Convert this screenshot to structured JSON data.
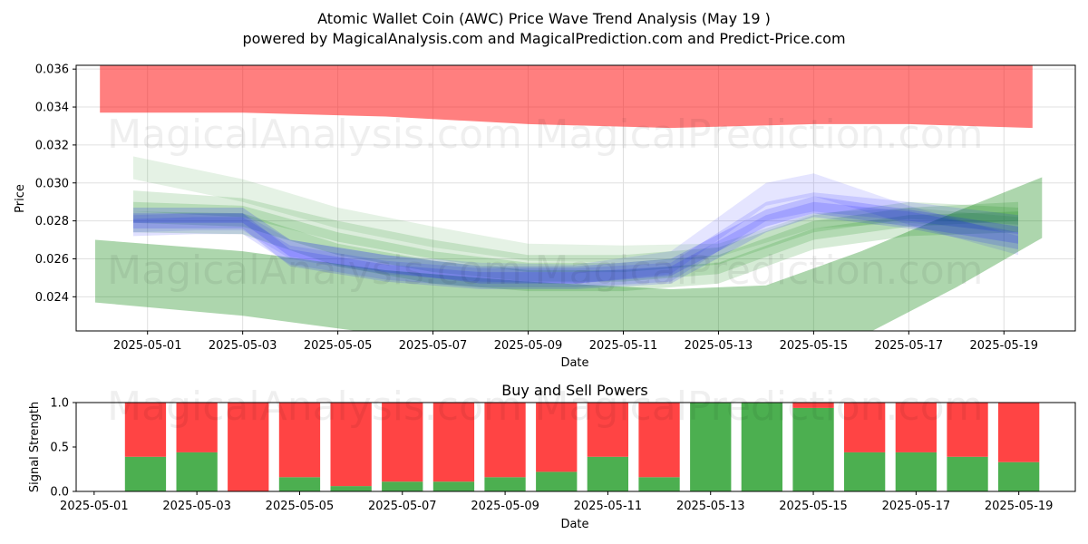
{
  "title": "Atomic Wallet Coin (AWC) Price Wave Trend Analysis (May 19 )",
  "subtitle": "powered by MagicalAnalysis.com and MagicalPrediction.com and Predict-Price.com",
  "watermarks": [
    "MagicalAnalysis.com",
    "MagicalPrediction.com"
  ],
  "colors": {
    "red_band": "#ff0000",
    "green_band": "#008000",
    "blue_band": "#0000ff",
    "buy": "#4caf50",
    "sell": "#ff4444",
    "grid": "#e0e0e0"
  },
  "chart_data": [
    {
      "type": "area",
      "title": "",
      "xlabel": "Date",
      "ylabel": "Price",
      "ylim": [
        0.0222,
        0.0362
      ],
      "xlim": [
        "2025-04-29T12:00",
        "2025-05-20T12:00"
      ],
      "grid": true,
      "x_ticks": [
        "2025-05-01",
        "2025-05-03",
        "2025-05-05",
        "2025-05-07",
        "2025-05-09",
        "2025-05-11",
        "2025-05-13",
        "2025-05-15",
        "2025-05-17",
        "2025-05-19"
      ],
      "y_ticks": [
        0.024,
        0.026,
        0.028,
        0.03,
        0.032,
        0.034,
        0.036
      ],
      "y_tick_labels": [
        "0.024",
        "0.026",
        "0.028",
        "0.030",
        "0.032",
        "0.034",
        "0.036"
      ],
      "series": [
        {
          "kind": "band",
          "color": "red",
          "opacity": 0.5,
          "x": [
            "2025-04-30",
            "2025-05-03",
            "2025-05-06",
            "2025-05-09",
            "2025-05-12",
            "2025-05-15",
            "2025-05-17",
            "2025-05-19.6"
          ],
          "upper": [
            0.0362,
            0.0362,
            0.0362,
            0.0362,
            0.0362,
            0.0362,
            0.0362,
            0.0362
          ],
          "lower": [
            0.0337,
            0.0337,
            0.0335,
            0.0331,
            0.0329,
            0.0331,
            0.0331,
            0.0329
          ]
        },
        {
          "kind": "band",
          "color": "green",
          "opacity": 0.32,
          "x": [
            "2025-04-29.9",
            "2025-05-03",
            "2025-05-06",
            "2025-05-09",
            "2025-05-12",
            "2025-05-14",
            "2025-05-16",
            "2025-05-18",
            "2025-05-19.8"
          ],
          "upper": [
            0.027,
            0.0264,
            0.0254,
            0.0248,
            0.0244,
            0.0246,
            0.0264,
            0.0285,
            0.0303
          ],
          "lower": [
            0.0237,
            0.023,
            0.022,
            0.0215,
            0.0213,
            0.0212,
            0.0219,
            0.0245,
            0.0271
          ]
        },
        {
          "kind": "band",
          "color": "green",
          "opacity": 0.1,
          "x": [
            "2025-04-30.7",
            "2025-05-03",
            "2025-05-05",
            "2025-05-07",
            "2025-05-09",
            "2025-05-11",
            "2025-05-13",
            "2025-05-15",
            "2025-05-17",
            "2025-05-19.3"
          ],
          "upper": [
            0.0314,
            0.0302,
            0.0287,
            0.0277,
            0.0268,
            0.0267,
            0.0268,
            0.0284,
            0.0287,
            0.0282
          ],
          "lower": [
            0.0302,
            0.029,
            0.0276,
            0.0266,
            0.0259,
            0.0258,
            0.0261,
            0.0276,
            0.0279,
            0.0274
          ]
        },
        {
          "kind": "band",
          "color": "green",
          "opacity": 0.14,
          "x": [
            "2025-04-30.7",
            "2025-05-03",
            "2025-05-05",
            "2025-05-07",
            "2025-05-09",
            "2025-05-11",
            "2025-05-13",
            "2025-05-15",
            "2025-05-17",
            "2025-05-19.3"
          ],
          "upper": [
            0.0296,
            0.0292,
            0.028,
            0.027,
            0.0262,
            0.0262,
            0.0266,
            0.0283,
            0.029,
            0.0287
          ],
          "lower": [
            0.0285,
            0.0282,
            0.0269,
            0.026,
            0.0253,
            0.0253,
            0.0257,
            0.0274,
            0.0281,
            0.0278
          ]
        },
        {
          "kind": "band",
          "color": "green",
          "opacity": 0.16,
          "x": [
            "2025-04-30.7",
            "2025-05-03",
            "2025-05-05",
            "2025-05-07",
            "2025-05-09",
            "2025-05-11",
            "2025-05-13",
            "2025-05-15",
            "2025-05-17",
            "2025-05-19.3"
          ],
          "upper": [
            0.029,
            0.0288,
            0.0274,
            0.0264,
            0.0258,
            0.0258,
            0.0262,
            0.028,
            0.0287,
            0.029
          ],
          "lower": [
            0.0279,
            0.0277,
            0.0262,
            0.0253,
            0.0248,
            0.0248,
            0.0252,
            0.027,
            0.0277,
            0.028
          ]
        },
        {
          "kind": "band",
          "color": "green",
          "opacity": 0.16,
          "x": [
            "2025-04-30.7",
            "2025-05-03",
            "2025-05-05",
            "2025-05-07",
            "2025-05-09",
            "2025-05-11",
            "2025-05-13",
            "2025-05-15",
            "2025-05-17",
            "2025-05-19.3"
          ],
          "upper": [
            0.0285,
            0.0284,
            0.0268,
            0.0259,
            0.0254,
            0.0254,
            0.0258,
            0.0276,
            0.0283,
            0.0285
          ],
          "lower": [
            0.0274,
            0.0273,
            0.0256,
            0.0247,
            0.0243,
            0.0243,
            0.0247,
            0.0265,
            0.0272,
            0.0274
          ]
        },
        {
          "kind": "band",
          "color": "blue",
          "opacity": 0.1,
          "x": [
            "2025-04-30.7",
            "2025-05-02",
            "2025-05-03",
            "2025-05-04",
            "2025-05-06",
            "2025-05-08",
            "2025-05-10",
            "2025-05-12",
            "2025-05-14",
            "2025-05-15",
            "2025-05-17",
            "2025-05-19.3"
          ],
          "upper": [
            0.0283,
            0.0284,
            0.0284,
            0.027,
            0.0262,
            0.0258,
            0.0257,
            0.0264,
            0.03,
            0.0305,
            0.0288,
            0.0272
          ],
          "lower": [
            0.0274,
            0.0275,
            0.0275,
            0.026,
            0.0252,
            0.0248,
            0.0247,
            0.0252,
            0.0288,
            0.0293,
            0.0278,
            0.0262
          ]
        },
        {
          "kind": "band",
          "color": "blue",
          "opacity": 0.12,
          "x": [
            "2025-04-30.7",
            "2025-05-02",
            "2025-05-03",
            "2025-05-04",
            "2025-05-06",
            "2025-05-08",
            "2025-05-10",
            "2025-05-12",
            "2025-05-14",
            "2025-05-15",
            "2025-05-17",
            "2025-05-19.3"
          ],
          "upper": [
            0.0281,
            0.0282,
            0.0282,
            0.0267,
            0.0259,
            0.0255,
            0.0255,
            0.0258,
            0.029,
            0.0295,
            0.029,
            0.0283
          ],
          "lower": [
            0.0272,
            0.0273,
            0.0273,
            0.0257,
            0.0249,
            0.0245,
            0.0245,
            0.0248,
            0.028,
            0.0285,
            0.028,
            0.0273
          ]
        },
        {
          "kind": "band",
          "color": "blue",
          "opacity": 0.14,
          "x": [
            "2025-04-30.7",
            "2025-05-02",
            "2025-05-03",
            "2025-05-04",
            "2025-05-06",
            "2025-05-08",
            "2025-05-10",
            "2025-05-12",
            "2025-05-14",
            "2025-05-15",
            "2025-05-17",
            "2025-05-19.3"
          ],
          "upper": [
            0.0284,
            0.0284,
            0.0284,
            0.0265,
            0.0257,
            0.0253,
            0.0253,
            0.0256,
            0.0283,
            0.029,
            0.0285,
            0.0274
          ],
          "lower": [
            0.0276,
            0.0276,
            0.0276,
            0.0256,
            0.0248,
            0.0244,
            0.0244,
            0.0247,
            0.0274,
            0.0282,
            0.0276,
            0.0265
          ]
        },
        {
          "kind": "band",
          "color": "blue",
          "opacity": 0.16,
          "x": [
            "2025-04-30.7",
            "2025-05-02",
            "2025-05-03",
            "2025-05-04",
            "2025-05-06",
            "2025-05-08",
            "2025-05-10",
            "2025-05-12",
            "2025-05-14",
            "2025-05-15",
            "2025-05-17",
            "2025-05-19.3"
          ],
          "upper": [
            0.0287,
            0.0287,
            0.0287,
            0.027,
            0.0262,
            0.0256,
            0.0256,
            0.026,
            0.0286,
            0.0293,
            0.0286,
            0.0277
          ],
          "lower": [
            0.0279,
            0.0279,
            0.0279,
            0.0261,
            0.0253,
            0.0247,
            0.0247,
            0.0251,
            0.0277,
            0.0284,
            0.0277,
            0.0268
          ]
        }
      ]
    },
    {
      "type": "bar",
      "title": "Buy and Sell Powers",
      "xlabel": "Date",
      "ylabel": "Signal Strength",
      "ylim": [
        0,
        1.0
      ],
      "xlim": [
        "2025-04-30.65",
        "2025-05-20.1"
      ],
      "y_ticks": [
        0.0,
        0.5,
        1.0
      ],
      "y_tick_labels": [
        "0.0",
        "0.5",
        "1.0"
      ],
      "x_ticks": [
        "2025-05-01",
        "2025-05-03",
        "2025-05-05",
        "2025-05-07",
        "2025-05-09",
        "2025-05-11",
        "2025-05-13",
        "2025-05-15",
        "2025-05-17",
        "2025-05-19"
      ],
      "categories": [
        "2025-05-02",
        "2025-05-03",
        "2025-05-04",
        "2025-05-05",
        "2025-05-06",
        "2025-05-07",
        "2025-05-08",
        "2025-05-09",
        "2025-05-10",
        "2025-05-11",
        "2025-05-12",
        "2025-05-13",
        "2025-05-14",
        "2025-05-15",
        "2025-05-16",
        "2025-05-17",
        "2025-05-18",
        "2025-05-19"
      ],
      "series": [
        {
          "name": "Buy",
          "values": [
            0.39,
            0.44,
            0.0,
            0.16,
            0.06,
            0.11,
            0.11,
            0.16,
            0.22,
            0.39,
            0.16,
            1.0,
            1.0,
            0.94,
            0.44,
            0.44,
            0.39,
            0.33
          ]
        },
        {
          "name": "Sell",
          "values": [
            0.61,
            0.56,
            1.0,
            0.84,
            0.94,
            0.89,
            0.89,
            0.84,
            0.78,
            0.61,
            0.84,
            0.0,
            0.0,
            0.06,
            0.56,
            0.56,
            0.61,
            0.67
          ]
        }
      ]
    }
  ]
}
